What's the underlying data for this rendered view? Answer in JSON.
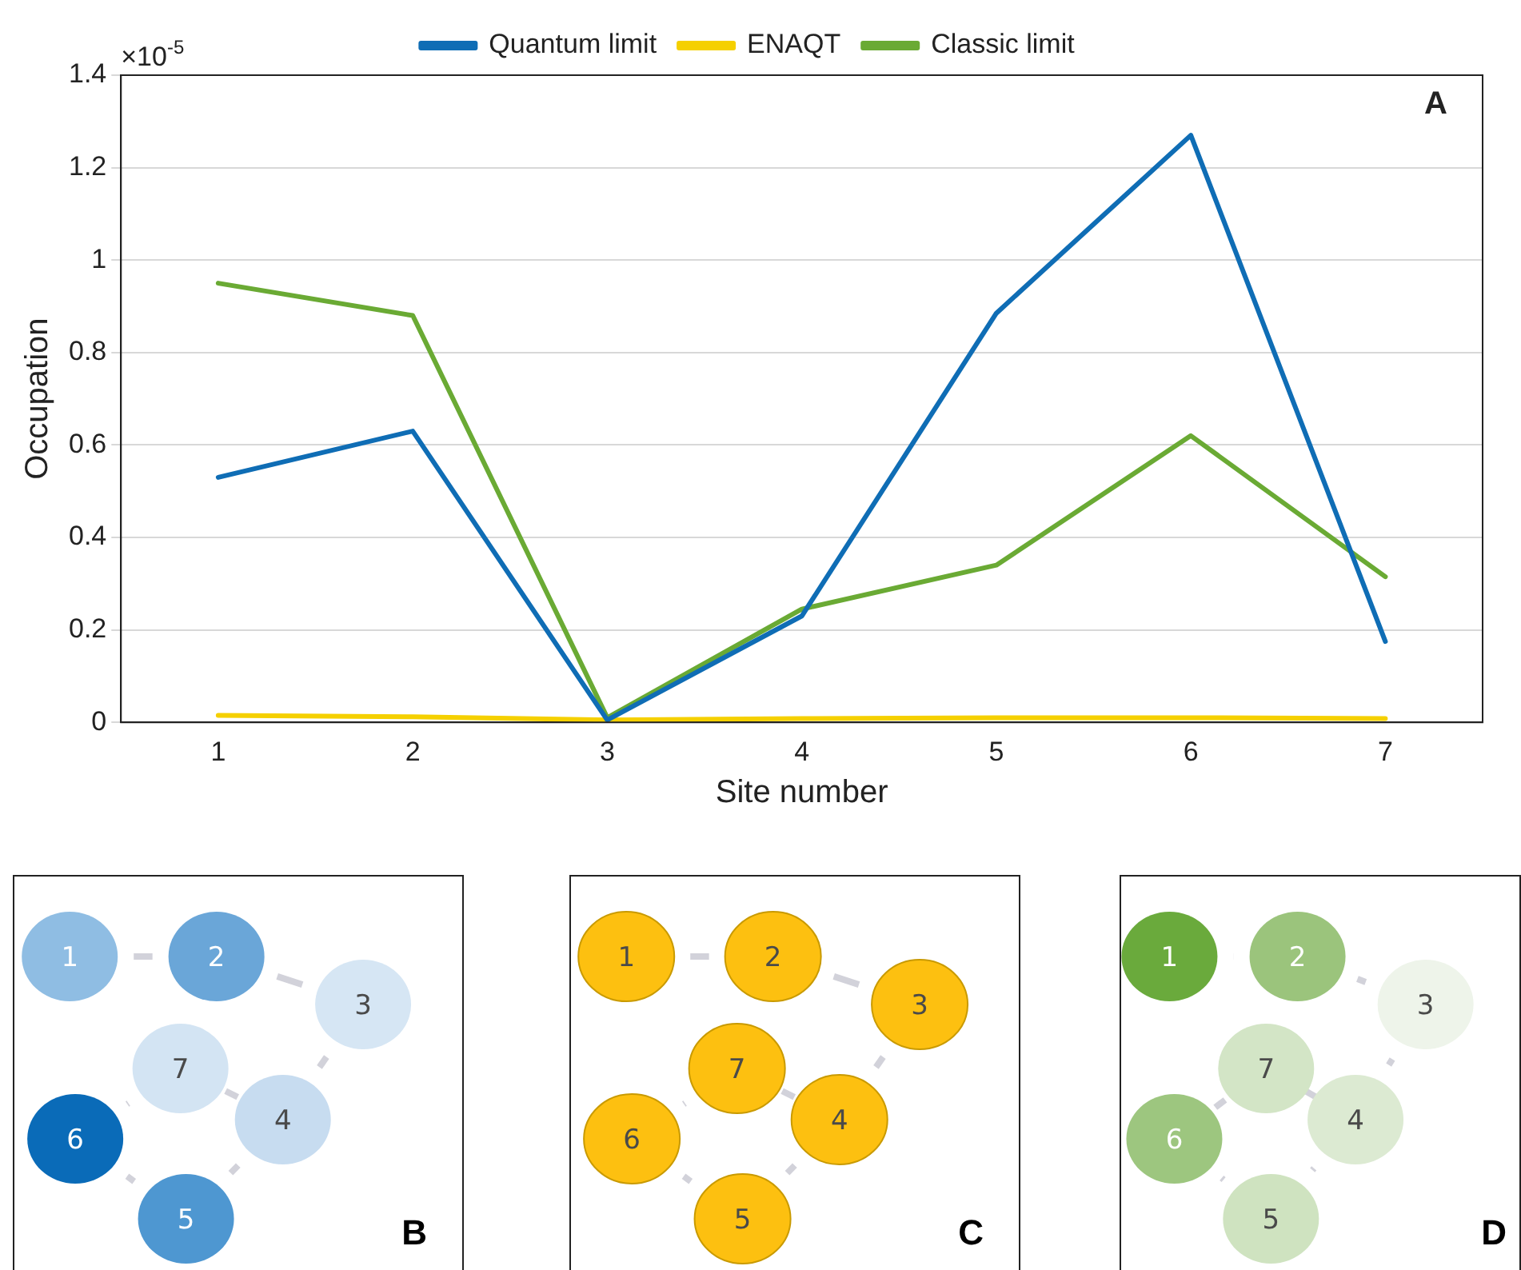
{
  "chart_data": [
    {
      "type": "line",
      "xlabel": "Site number",
      "ylabel": "Occupation",
      "categories": [
        "1",
        "2",
        "3",
        "4",
        "5",
        "6",
        "7"
      ],
      "series": [
        {
          "name": "Quantum limit",
          "color": "#0f6db5",
          "values": [
            0.53,
            0.63,
            0.005,
            0.23,
            0.885,
            1.27,
            0.175
          ]
        },
        {
          "name": "ENAQT",
          "color": "#f5d000",
          "values": [
            0.015,
            0.012,
            0.005,
            0.008,
            0.01,
            0.01,
            0.008
          ]
        },
        {
          "name": "Classic limit",
          "color": "#6aaa34",
          "values": [
            0.95,
            0.88,
            0.01,
            0.245,
            0.34,
            0.62,
            0.315
          ]
        }
      ],
      "ylim": [
        0,
        1.4
      ],
      "yticks": [
        0,
        0.2,
        0.4,
        0.6,
        0.8,
        1,
        1.2,
        1.4
      ],
      "grid": "y",
      "legend": "top",
      "marker": "none",
      "line_style": "solid",
      "annotations": [
        "×10$^{-5}$",
        "A"
      ]
    },
    {
      "type": "other",
      "title": "B",
      "annotations": [
        "1",
        "2",
        "3",
        "4",
        "5",
        "6",
        "7"
      ]
    },
    {
      "type": "other",
      "title": "C",
      "annotations": [
        "1",
        "2",
        "3",
        "4",
        "5",
        "6",
        "7"
      ]
    },
    {
      "type": "other",
      "title": "D",
      "annotations": [
        "1",
        "2",
        "3",
        "4",
        "5",
        "6",
        "7"
      ]
    }
  ]
}
